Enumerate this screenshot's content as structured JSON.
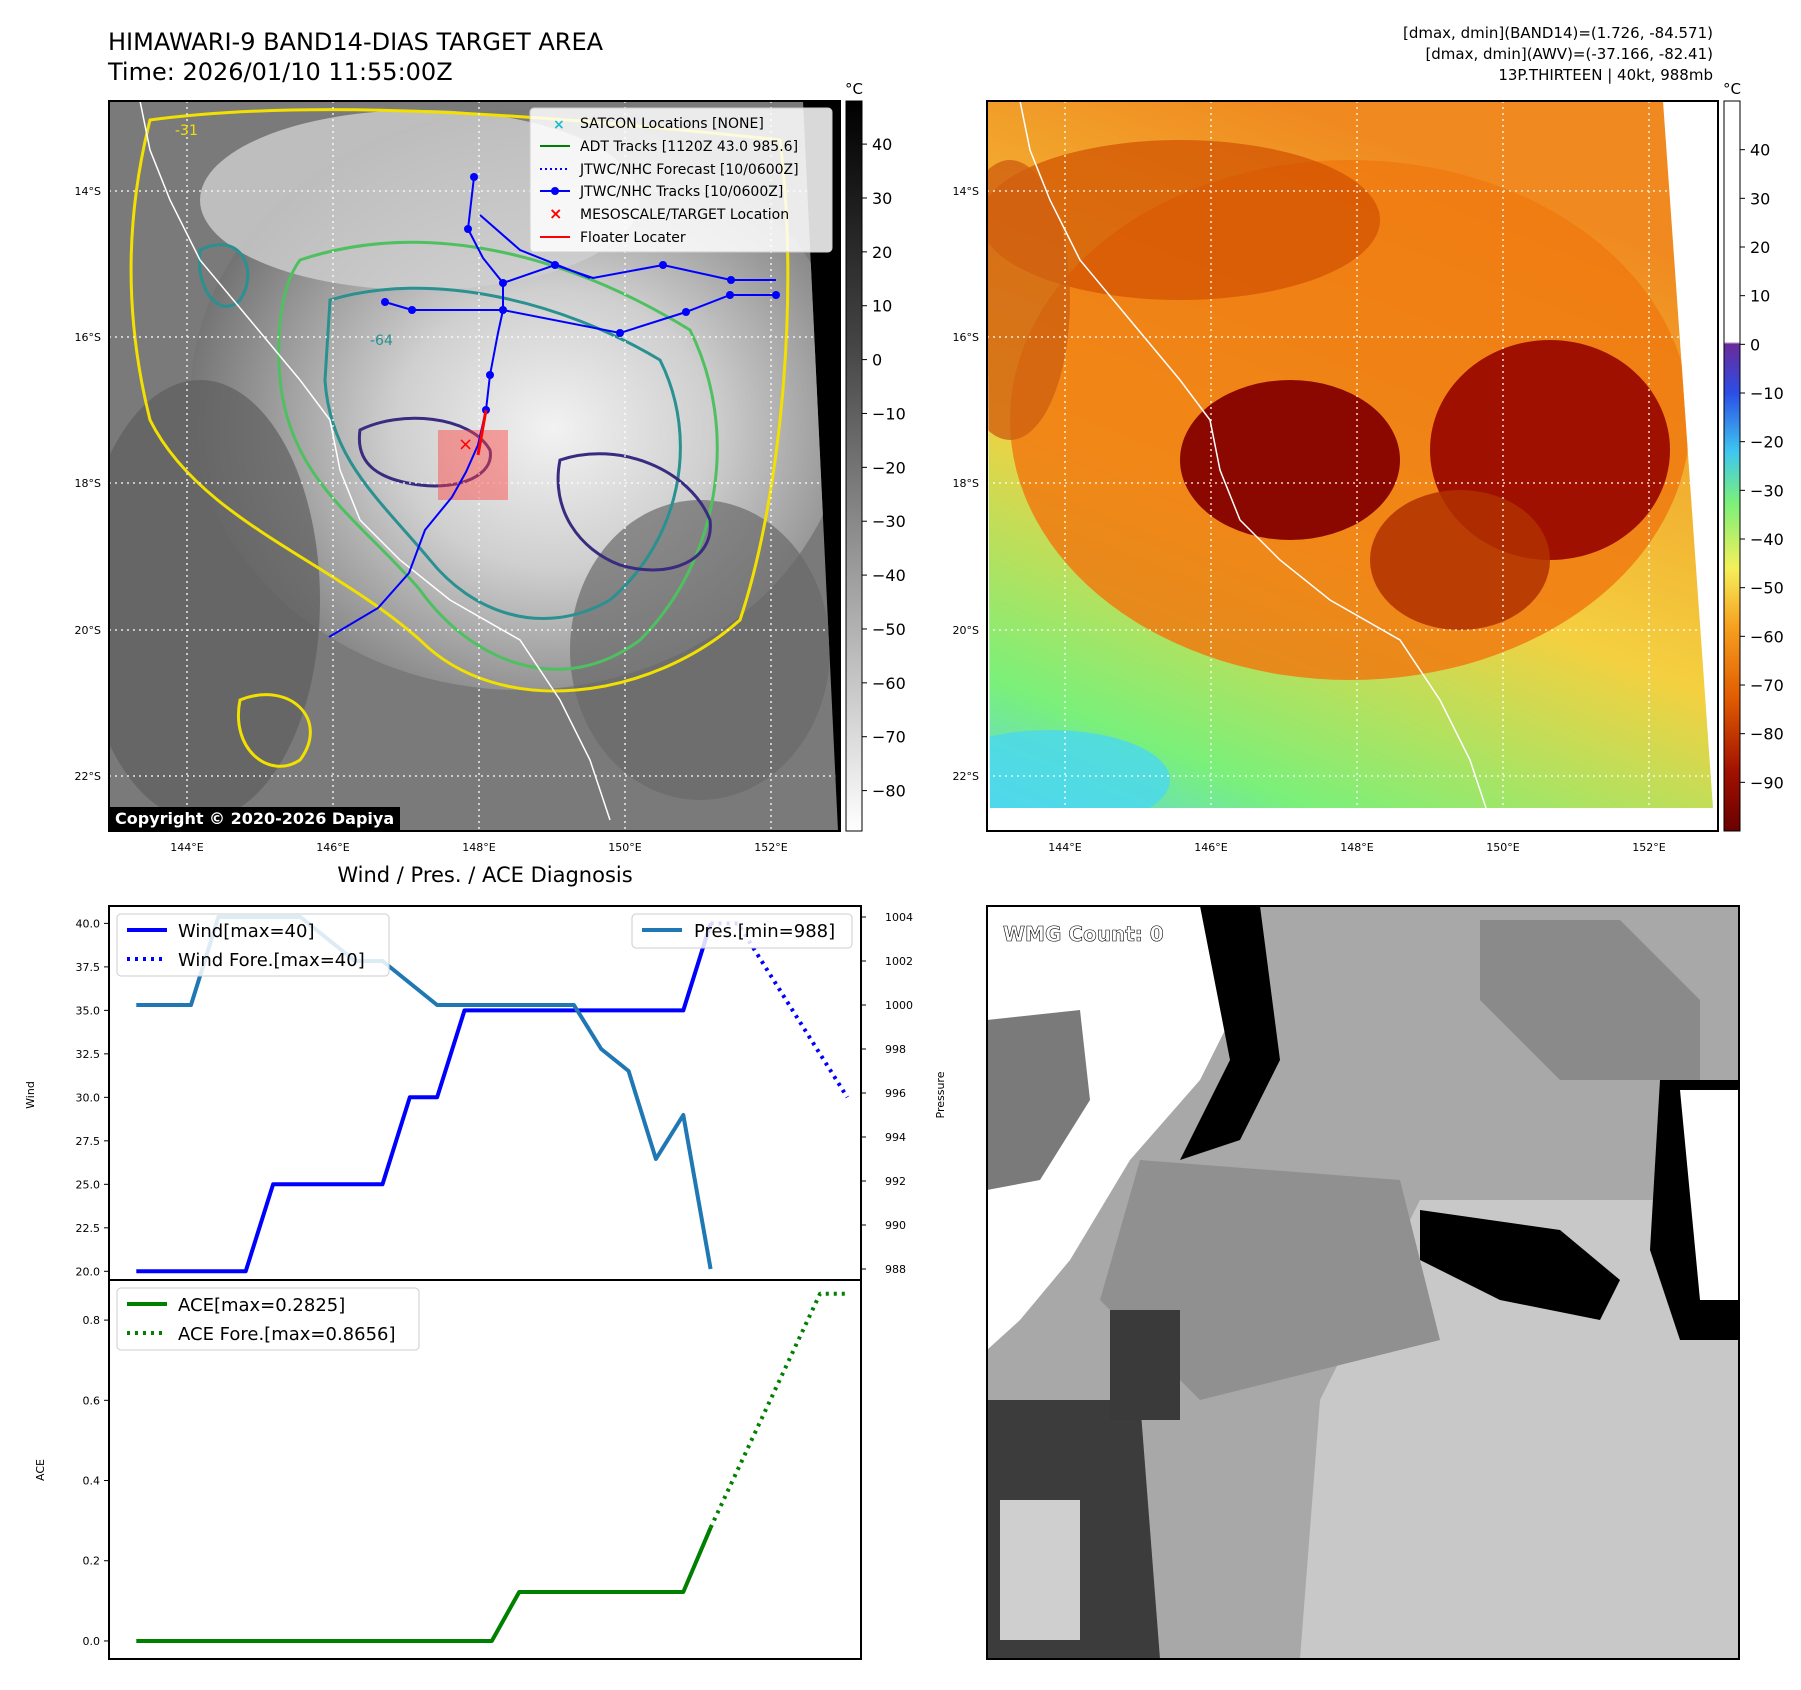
{
  "header": {
    "title_line1": "HIMAWARI-9 BAND14-DIAS TARGET AREA",
    "title_line2": "Time: 2026/01/10 11:55:00Z",
    "info_line1": "[dmax, dmin](BAND14)=(1.726, -84.571)",
    "info_line2": "[dmax, dmin](AWV)=(-37.166, -82.41)",
    "info_line3": "13P.THIRTEEN | 40kt, 988mb"
  },
  "satellite_map": {
    "colorbar_unit": "°C",
    "colorbar_ticks": [
      40,
      30,
      20,
      10,
      0,
      -10,
      -20,
      -30,
      -40,
      -50,
      -60,
      -70,
      -80
    ],
    "colorbar_labels": [
      "40",
      "30",
      "20",
      "10",
      "0",
      "−10",
      "−20",
      "−30",
      "−40",
      "−50",
      "−60",
      "−70",
      "−80"
    ],
    "lat_labels": [
      "14°S",
      "16°S",
      "18°S",
      "20°S",
      "22°S"
    ],
    "lon_labels": [
      "144°E",
      "146°E",
      "148°E",
      "150°E",
      "152°E"
    ],
    "copyright": "Copyright © 2020-2026 Dapiya",
    "contour_labels": [
      "-31",
      "-64"
    ],
    "legend": [
      {
        "label": "SATCON Locations [NONE]",
        "color": "#17becf",
        "style": "x-marker"
      },
      {
        "label": "ADT Tracks [1120Z 43.0 985.6]",
        "color": "#008000",
        "style": "solid"
      },
      {
        "label": "JTWC/NHC Forecast [10/0600Z]",
        "color": "#0000ff",
        "style": "dotted"
      },
      {
        "label": "JTWC/NHC Tracks [10/0600Z]",
        "color": "#0000ff",
        "style": "solid-dot"
      },
      {
        "label": "MESOSCALE/TARGET Location",
        "color": "#ff0000",
        "style": "x-marker"
      },
      {
        "label": "Floater Locater",
        "color": "#ff0000",
        "style": "solid"
      }
    ]
  },
  "awv_map": {
    "colorbar_unit": "°C",
    "colorbar_ticks": [
      40,
      30,
      20,
      10,
      0,
      -10,
      -20,
      -30,
      -40,
      -50,
      -60,
      -70,
      -80,
      -90
    ],
    "colorbar_labels": [
      "40",
      "30",
      "20",
      "10",
      "0",
      "−10",
      "−20",
      "−30",
      "−40",
      "−50",
      "−60",
      "−70",
      "−80",
      "−90"
    ],
    "lat_labels": [
      "14°S",
      "16°S",
      "18°S",
      "20°S",
      "22°S"
    ],
    "lon_labels": [
      "144°E",
      "146°E",
      "148°E",
      "150°E",
      "152°E"
    ]
  },
  "chart_data": [
    {
      "type": "line",
      "title": "Wind / Pres. / ACE Diagnosis",
      "ylabel": "Wind",
      "y2label": "Pressure",
      "ylim": [
        19.5,
        41
      ],
      "y2lim": [
        987.5,
        1004.5
      ],
      "xlim": [
        0,
        27.5
      ],
      "yticks": [
        20.0,
        22.5,
        25.0,
        27.5,
        30.0,
        32.5,
        35.0,
        37.5,
        40.0
      ],
      "ytick_labels": [
        "20.0",
        "22.5",
        "25.0",
        "27.5",
        "30.0",
        "32.5",
        "35.0",
        "37.5",
        "40.0"
      ],
      "y2ticks": [
        988,
        990,
        992,
        994,
        996,
        998,
        1000,
        1002,
        1004
      ],
      "y2tick_labels": [
        "988",
        "990",
        "992",
        "994",
        "996",
        "998",
        "1000",
        "1002",
        "1004"
      ],
      "series": [
        {
          "name": "Wind[max=40]",
          "color": "#0000ff",
          "style": "solid",
          "axis": "left",
          "x": [
            1,
            5,
            6,
            10,
            11,
            12,
            13,
            17,
            18,
            21,
            22
          ],
          "values": [
            20,
            20,
            25,
            25,
            30,
            30,
            35,
            35,
            35,
            35,
            40
          ]
        },
        {
          "name": "Wind Fore.[max=40]",
          "color": "#0000ff",
          "style": "dotted",
          "axis": "left",
          "x": [
            22,
            23,
            27
          ],
          "values": [
            40,
            40,
            30
          ]
        },
        {
          "name": "Pres.[min=988]",
          "color": "#1f77b4",
          "style": "solid",
          "axis": "right",
          "x": [
            1,
            3,
            4,
            5,
            7,
            9,
            10,
            12,
            14,
            16,
            17,
            18,
            19,
            20,
            21,
            22
          ],
          "values": [
            1000,
            1000,
            1004,
            1004,
            1004,
            1002,
            1002,
            1000,
            1000,
            1000,
            1000,
            998,
            997,
            993,
            995,
            988
          ]
        }
      ]
    },
    {
      "type": "line",
      "title": "",
      "ylabel": "ACE",
      "ylim": [
        -0.045,
        0.9
      ],
      "xlim": [
        0,
        27.5
      ],
      "yticks": [
        0.0,
        0.2,
        0.4,
        0.6,
        0.8
      ],
      "ytick_labels": [
        "0.0",
        "0.2",
        "0.4",
        "0.6",
        "0.8"
      ],
      "series": [
        {
          "name": "ACE[max=0.2825]",
          "color": "#008000",
          "style": "solid",
          "x": [
            1,
            14,
            15,
            16,
            18,
            21,
            22
          ],
          "values": [
            0,
            0,
            0.122,
            0.122,
            0.122,
            0.122,
            0.2825
          ]
        },
        {
          "name": "ACE Fore.[max=0.8656]",
          "color": "#008000",
          "style": "dotted",
          "x": [
            22,
            26,
            27
          ],
          "values": [
            0.2825,
            0.8656,
            0.8656
          ]
        }
      ]
    }
  ],
  "wmg_panel": {
    "count_label": "WMG Count: 0"
  }
}
